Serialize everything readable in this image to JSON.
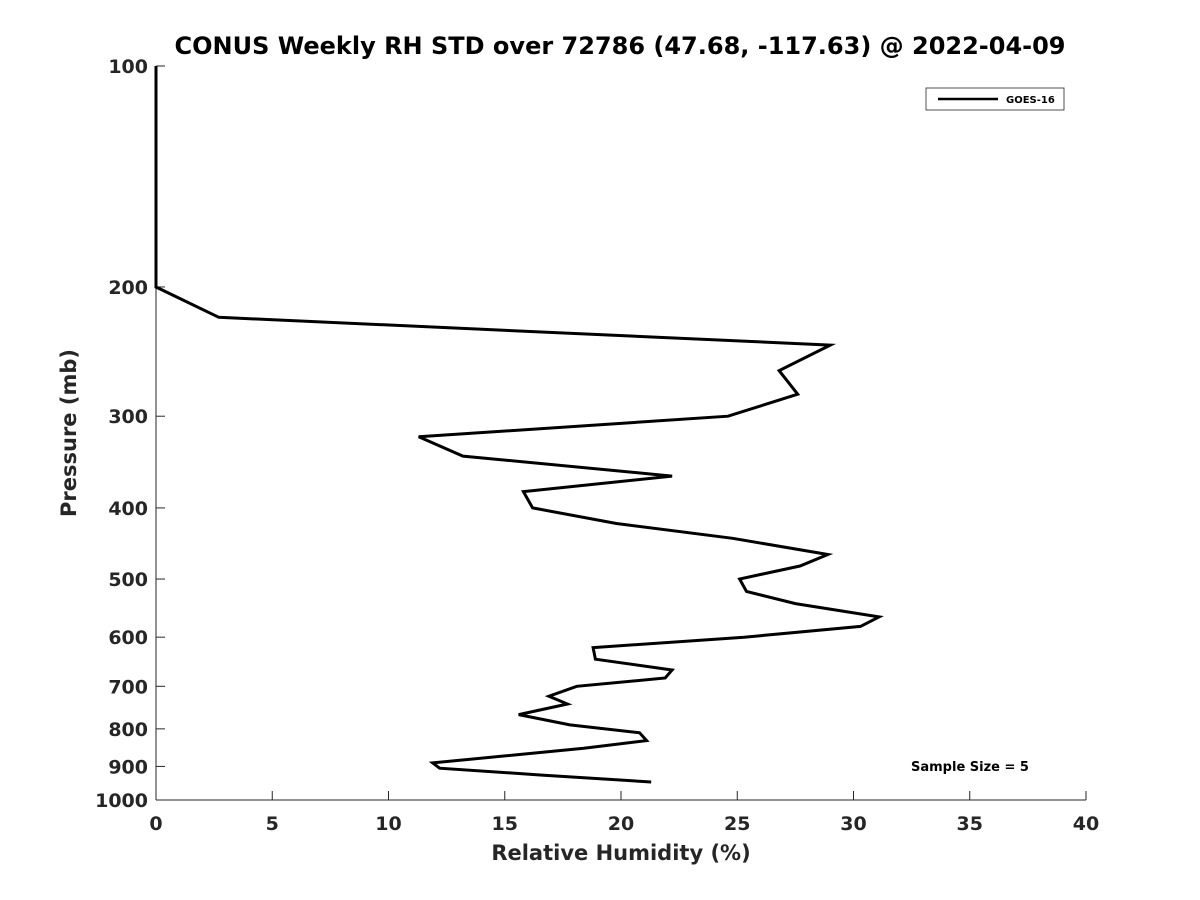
{
  "chart_data": {
    "type": "line",
    "title": "CONUS Weekly RH STD over 72786 (47.68, -117.63) @ 2022-04-09",
    "xlabel": "Relative Humidity (%)",
    "ylabel": "Pressure (mb)",
    "xlim": [
      0,
      40
    ],
    "ylim": [
      100,
      1000
    ],
    "y_scale": "log",
    "y_reversed": true,
    "x_ticks": [
      0,
      5,
      10,
      15,
      20,
      25,
      30,
      35,
      40
    ],
    "y_ticks": [
      100,
      200,
      300,
      400,
      500,
      600,
      700,
      800,
      900,
      1000
    ],
    "grid": false,
    "legend_position": "top-right",
    "series": [
      {
        "name": "GOES-16",
        "color": "#000000",
        "points": [
          {
            "x": 0.0,
            "y": 100
          },
          {
            "x": 0.0,
            "y": 150
          },
          {
            "x": 0.0,
            "y": 200
          },
          {
            "x": 2.7,
            "y": 220
          },
          {
            "x": 29.0,
            "y": 240
          },
          {
            "x": 26.8,
            "y": 260
          },
          {
            "x": 27.6,
            "y": 280
          },
          {
            "x": 24.6,
            "y": 300
          },
          {
            "x": 11.3,
            "y": 320
          },
          {
            "x": 13.2,
            "y": 340
          },
          {
            "x": 22.2,
            "y": 362
          },
          {
            "x": 15.8,
            "y": 380
          },
          {
            "x": 16.2,
            "y": 400
          },
          {
            "x": 19.8,
            "y": 420
          },
          {
            "x": 24.8,
            "y": 440
          },
          {
            "x": 28.9,
            "y": 463
          },
          {
            "x": 27.7,
            "y": 480
          },
          {
            "x": 25.1,
            "y": 500
          },
          {
            "x": 25.4,
            "y": 520
          },
          {
            "x": 27.5,
            "y": 540
          },
          {
            "x": 31.1,
            "y": 563
          },
          {
            "x": 30.3,
            "y": 580
          },
          {
            "x": 25.3,
            "y": 600
          },
          {
            "x": 18.8,
            "y": 620
          },
          {
            "x": 18.9,
            "y": 643
          },
          {
            "x": 22.2,
            "y": 665
          },
          {
            "x": 21.9,
            "y": 682
          },
          {
            "x": 18.1,
            "y": 700
          },
          {
            "x": 16.9,
            "y": 722
          },
          {
            "x": 17.7,
            "y": 740
          },
          {
            "x": 15.6,
            "y": 765
          },
          {
            "x": 17.8,
            "y": 790
          },
          {
            "x": 20.8,
            "y": 810
          },
          {
            "x": 21.1,
            "y": 830
          },
          {
            "x": 18.4,
            "y": 850
          },
          {
            "x": 11.9,
            "y": 890
          },
          {
            "x": 12.2,
            "y": 905
          },
          {
            "x": 16.6,
            "y": 925
          },
          {
            "x": 21.3,
            "y": 945
          }
        ]
      }
    ],
    "annotations": [
      "Sample Size = 5"
    ]
  }
}
